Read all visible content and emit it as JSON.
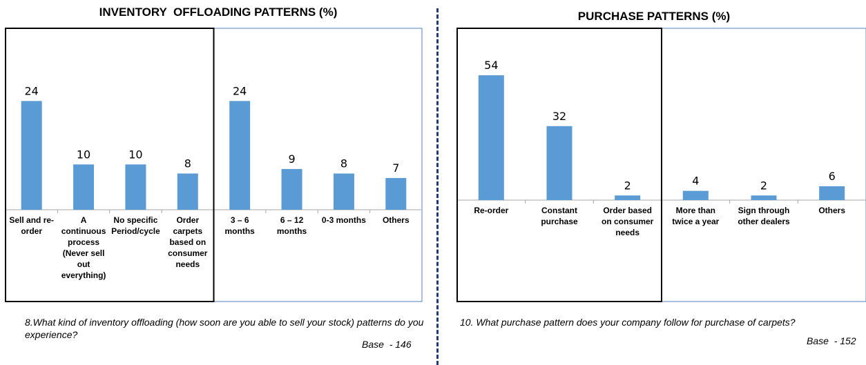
{
  "left": {
    "title": "INVENTORY  OFFLOADING PATTERNS (%)",
    "question": "8.What kind of inventory offloading (how soon are you able to sell your stock) patterns do you experience?",
    "base": "Base  - 146"
  },
  "right": {
    "title": "PURCHASE PATTERNS (%)",
    "question": "10. What purchase pattern does your company follow for purchase of carpets?",
    "base": "Base  - 152"
  },
  "colors": {
    "bar": "#5b9bd5",
    "frame": "#4f81bd",
    "highlight_box": "#000000",
    "divider": "#1f3a7a"
  },
  "chart_data": [
    {
      "type": "bar",
      "title": "INVENTORY  OFFLOADING PATTERNS (%)",
      "categories": [
        [
          "Sell and re-",
          "order"
        ],
        [
          "A",
          "continuous",
          "process",
          "(Never sell",
          "out",
          "everything)"
        ],
        [
          "No specific",
          "Period/cycle"
        ],
        [
          "Order",
          "carpets",
          "based on",
          "consumer",
          "needs"
        ],
        [
          "3 – 6",
          "months"
        ],
        [
          "6 – 12",
          "months"
        ],
        [
          "0-3 months"
        ],
        [
          "Others"
        ]
      ],
      "values": [
        24,
        10,
        10,
        8,
        24,
        9,
        8,
        7
      ],
      "highlighted_categories": [
        0,
        1,
        2,
        3
      ],
      "ylim": [
        0,
        30
      ],
      "grid": false,
      "data_labels": true
    },
    {
      "type": "bar",
      "title": "PURCHASE PATTERNS (%)",
      "categories": [
        [
          "Re-order"
        ],
        [
          "Constant",
          "purchase"
        ],
        [
          "Order  based",
          "on consumer",
          "needs"
        ],
        [
          "More than",
          "twice a year"
        ],
        [
          "Sign through",
          "other dealers"
        ],
        [
          "Others"
        ]
      ],
      "values": [
        54,
        32,
        2,
        4,
        2,
        6
      ],
      "highlighted_categories": [
        0,
        1,
        2
      ],
      "ylim": [
        0,
        60
      ],
      "grid": false,
      "data_labels": true
    }
  ]
}
